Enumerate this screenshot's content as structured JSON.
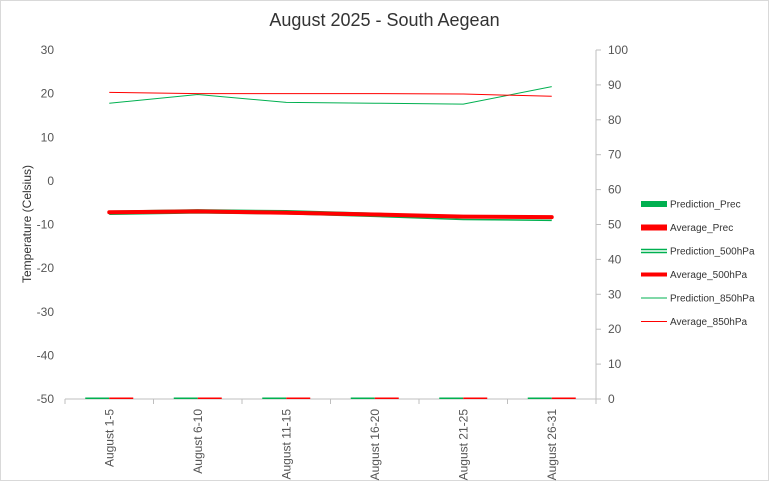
{
  "chart_data": {
    "type": "line",
    "title": "August 2025 - South Aegean",
    "ylabel": "Temperature  (Celsius)",
    "y2label": "",
    "categories": [
      "August 1-5",
      "August 6-10",
      "August 11-15",
      "August 16-20",
      "August 21-25",
      "August 26-31"
    ],
    "y_left": {
      "min": -50,
      "max": 30,
      "step": 10,
      "ticks": [
        "30",
        "20",
        "10",
        "0",
        "-10",
        "-20",
        "-30",
        "-40",
        "-50"
      ]
    },
    "y_right": {
      "min": 0,
      "max": 100,
      "step": 10,
      "ticks": [
        "100",
        "90",
        "80",
        "70",
        "60",
        "50",
        "40",
        "30",
        "20",
        "10",
        "0"
      ]
    },
    "grid": false,
    "legend_position": "right",
    "series": [
      {
        "name": "Prediction_Prec",
        "kind": "bar",
        "axis": "right",
        "color": "#00b050",
        "values": [
          0.4,
          0.1,
          0.1,
          0.1,
          0.1,
          0.1
        ]
      },
      {
        "name": "Average_Prec",
        "kind": "bar",
        "axis": "right",
        "color": "#ff0000",
        "values": [
          0.3,
          0.1,
          0.1,
          0.1,
          0.1,
          0.1
        ]
      },
      {
        "name": "Prediction_500hPa",
        "kind": "line",
        "style": "double",
        "axis": "left",
        "color": "#00b050",
        "values": [
          -7.3,
          -7.0,
          -7.2,
          -7.8,
          -8.5,
          -8.7
        ]
      },
      {
        "name": "Average_500hPa",
        "kind": "line",
        "style": "thick",
        "axis": "left",
        "color": "#ff0000",
        "values": [
          -7.2,
          -7.0,
          -7.3,
          -7.7,
          -8.2,
          -8.3
        ]
      },
      {
        "name": "Prediction_850hPa",
        "kind": "line",
        "style": "thin",
        "axis": "left",
        "color": "#00b050",
        "values": [
          17.8,
          19.8,
          18.0,
          17.8,
          17.6,
          21.6
        ]
      },
      {
        "name": "Average_850hPa",
        "kind": "line",
        "style": "thin",
        "axis": "left",
        "color": "#ff0000",
        "values": [
          20.3,
          20.0,
          20.0,
          20.0,
          19.9,
          19.4
        ]
      }
    ]
  }
}
